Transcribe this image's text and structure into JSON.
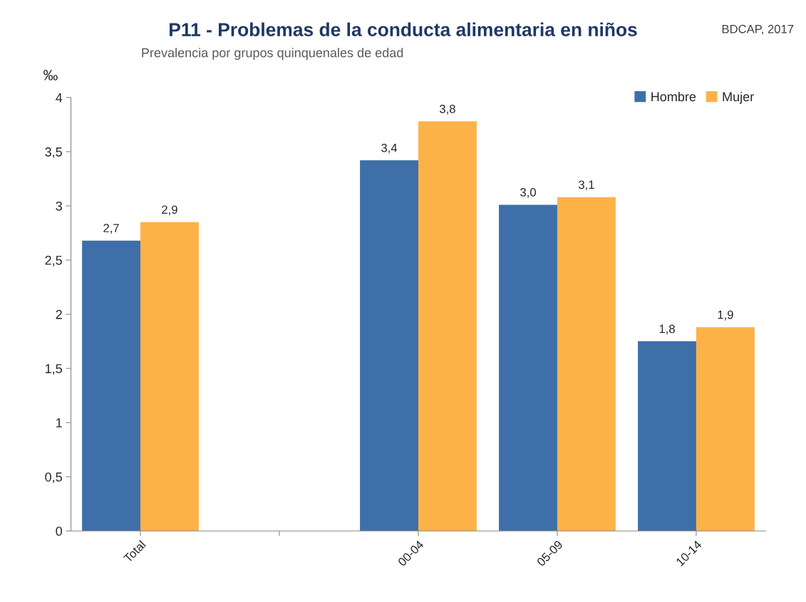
{
  "chart_data": {
    "type": "bar",
    "title": "P11 - Problemas de la conducta alimentaria en niños",
    "subtitle": "Prevalencia por grupos quinquenales de edad",
    "ylabel": "‰",
    "annotations": [
      "BDCAP, 2017"
    ],
    "categories": [
      "Total",
      null,
      "00-04",
      "05-09",
      "10-14"
    ],
    "series": [
      {
        "name": "Hombre",
        "color": "#3f6fa8",
        "values": [
          2.68,
          null,
          3.42,
          3.01,
          1.75
        ],
        "value_labels": [
          "2,7",
          null,
          "3,4",
          "3,0",
          "1,8"
        ]
      },
      {
        "name": "Mujer",
        "color": "#fdb248",
        "values": [
          2.85,
          null,
          3.78,
          3.08,
          1.88
        ],
        "value_labels": [
          "2,9",
          null,
          "3,8",
          "3,1",
          "1,9"
        ]
      }
    ],
    "ylim": [
      0,
      4
    ],
    "yticks": [
      0,
      {
        "value": 0.5,
        "label": "0,5"
      },
      1,
      {
        "value": 1.5,
        "label": "1,5"
      },
      2,
      {
        "value": 2.5,
        "label": "2,5"
      },
      3,
      {
        "value": 3.5,
        "label": "3,5"
      },
      4
    ],
    "grid": false,
    "legend": "top right"
  }
}
